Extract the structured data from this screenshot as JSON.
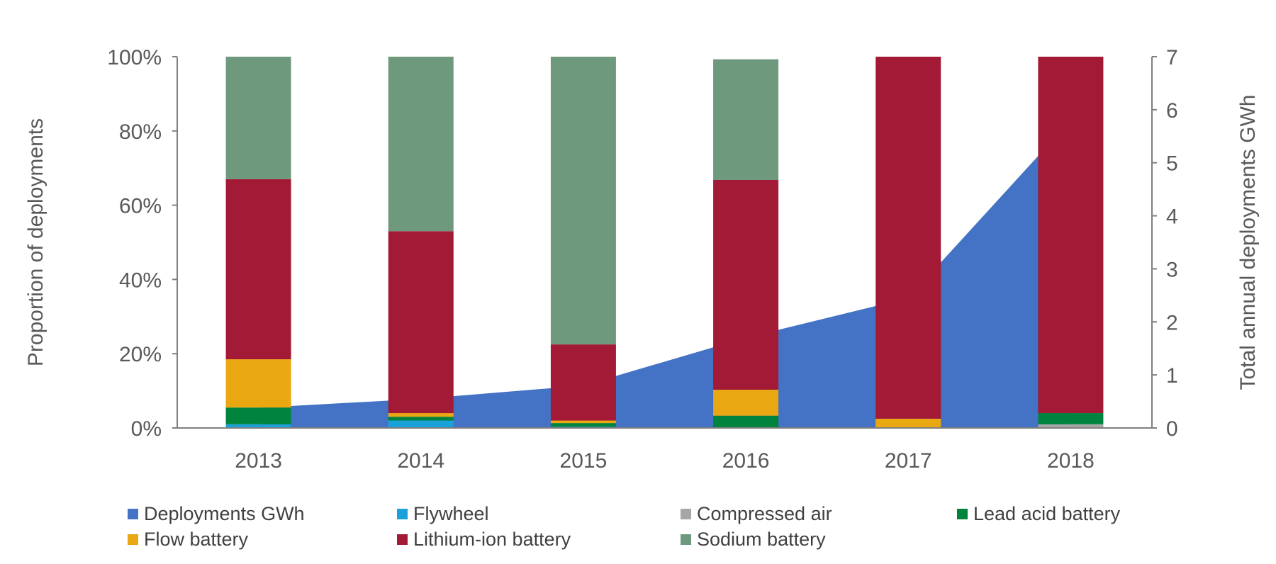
{
  "chart_data": {
    "type": "bar",
    "subtype": "stacked-percent-bar with area on secondary axis",
    "categories": [
      "2013",
      "2014",
      "2015",
      "2016",
      "2017",
      "2018"
    ],
    "ylabel": "Proportion of deployments",
    "y2label": "Total annual deployments GWh",
    "ylim": [
      0,
      100
    ],
    "y2lim": [
      0,
      7
    ],
    "yticks": [
      "0%",
      "20%",
      "40%",
      "60%",
      "80%",
      "100%"
    ],
    "y2ticks": [
      "0",
      "1",
      "2",
      "3",
      "4",
      "5",
      "6",
      "7"
    ],
    "grid": false,
    "legend_position": "bottom",
    "area_series": {
      "name": "Deployments GWh",
      "color": "#4472C4",
      "axis": "right",
      "values": [
        0.38,
        0.55,
        0.8,
        1.7,
        2.45,
        5.8
      ]
    },
    "series": [
      {
        "name": "Flywheel",
        "color": "#1BA1D9",
        "values": [
          1,
          2,
          0.3,
          0,
          0,
          0
        ]
      },
      {
        "name": "Compressed air",
        "color": "#A6A6A6",
        "values": [
          0,
          0,
          0,
          0,
          0,
          1
        ]
      },
      {
        "name": "Lead acid battery",
        "color": "#00843D",
        "values": [
          4.5,
          1,
          1,
          3.3,
          0,
          3
        ]
      },
      {
        "name": "Flow battery",
        "color": "#E9A712",
        "values": [
          13,
          1,
          0.7,
          7,
          2.5,
          0
        ]
      },
      {
        "name": "Lithium-ion battery",
        "color": "#A21A35",
        "values": [
          48.5,
          49,
          20.5,
          56.5,
          97.5,
          96
        ]
      },
      {
        "name": "Sodium battery",
        "color": "#6F997C",
        "values": [
          33,
          47,
          77.5,
          32.5,
          0,
          0
        ]
      }
    ],
    "legend": [
      "Deployments GWh",
      "Flywheel",
      "Compressed air",
      "Lead acid battery",
      "Flow battery",
      "Lithium-ion battery",
      "Sodium battery"
    ]
  }
}
